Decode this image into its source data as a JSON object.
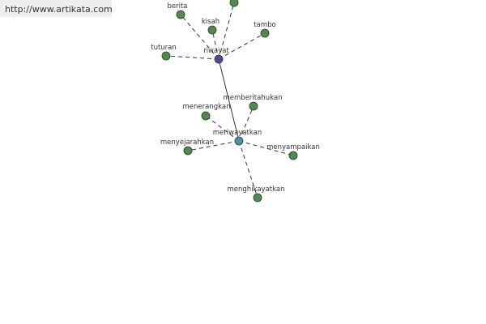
{
  "header": {
    "url": "http://www.artikata.com"
  },
  "nodes": [
    {
      "label": "riwayat"
    },
    {
      "label": "berita"
    },
    {
      "label": "kisah"
    },
    {
      "label": "tambo"
    },
    {
      "label": "tuturan"
    },
    {
      "label": "meriwayatkan"
    },
    {
      "label": "menerangkan"
    },
    {
      "label": "memberitahukan"
    },
    {
      "label": "menyejarahkan"
    },
    {
      "label": "menyampaikan"
    },
    {
      "label": "menghikayatkan"
    }
  ]
}
